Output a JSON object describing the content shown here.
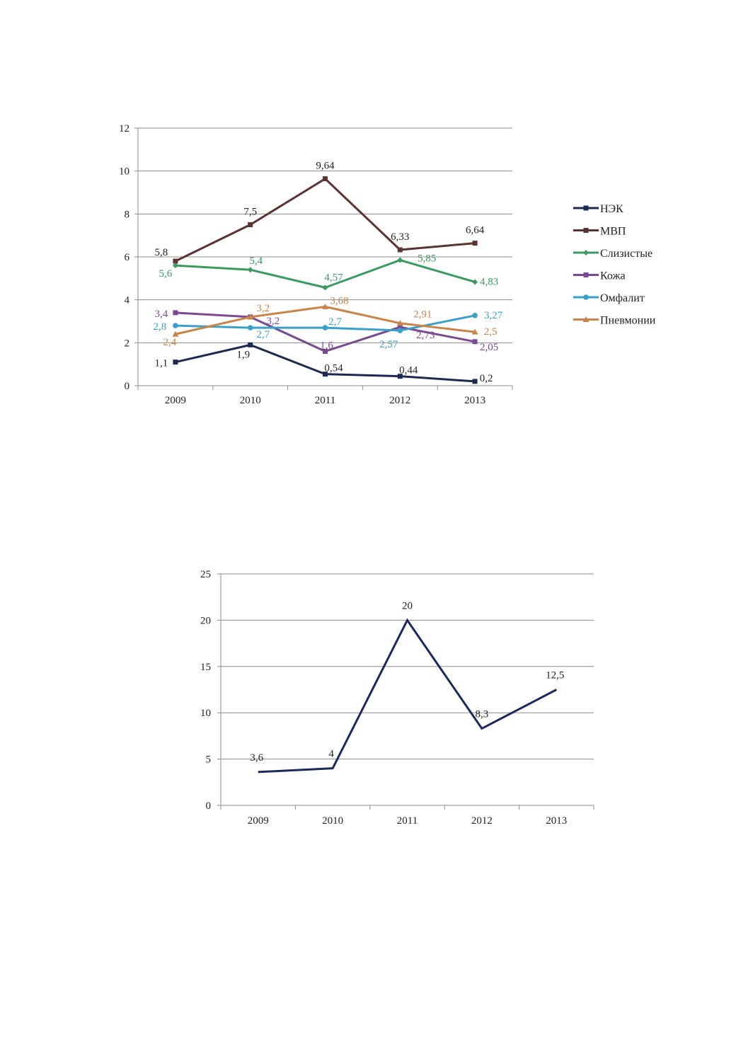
{
  "chart_data": [
    {
      "type": "line",
      "categories": [
        "2009",
        "2010",
        "2011",
        "2012",
        "2013"
      ],
      "ylim": [
        0,
        12
      ],
      "yticks": [
        "0",
        "2",
        "4",
        "6",
        "8",
        "10",
        "12"
      ],
      "grid": true,
      "legend_position": "right",
      "series": [
        {
          "name": "НЭК",
          "color": "#1b2a4e",
          "marker": "square",
          "values": [
            1.1,
            1.9,
            0.54,
            0.44,
            0.2
          ],
          "labels": [
            "1,1",
            "1,9",
            "0,54",
            "0,44",
            "0,2"
          ]
        },
        {
          "name": "МВП",
          "color": "#5a3432",
          "marker": "square",
          "values": [
            5.8,
            7.5,
            9.64,
            6.33,
            6.64
          ],
          "labels": [
            "5,8",
            "7,5",
            "9,64",
            "6,33",
            "6,64"
          ]
        },
        {
          "name": "Слизистые",
          "color": "#3a9a5f",
          "marker": "diamond",
          "values": [
            5.6,
            5.4,
            4.57,
            5.85,
            4.83
          ],
          "labels": [
            "5,6",
            "5,4",
            "4,57",
            "5,85",
            "4,83"
          ]
        },
        {
          "name": "Кожа",
          "color": "#7a4a90",
          "marker": "square",
          "values": [
            3.4,
            3.2,
            1.6,
            2.73,
            2.05
          ],
          "labels": [
            "3,4",
            "3,2",
            "1,6",
            "2,73",
            "2,05"
          ]
        },
        {
          "name": "Омфалит",
          "color": "#3aa0c8",
          "marker": "circle",
          "values": [
            2.8,
            2.7,
            2.7,
            2.57,
            3.27
          ],
          "labels": [
            "2,8",
            "2,7",
            "2,7",
            "2,57",
            "3,27"
          ]
        },
        {
          "name": "Пневмонии",
          "color": "#c8844a",
          "marker": "triangle",
          "values": [
            2.4,
            3.2,
            3.68,
            2.91,
            2.5
          ],
          "labels": [
            "2,4",
            "3,2",
            "3,68",
            "2,91",
            "2,5"
          ]
        }
      ]
    },
    {
      "type": "line",
      "categories": [
        "2009",
        "2010",
        "2011",
        "2012",
        "2013"
      ],
      "ylim": [
        0,
        25
      ],
      "yticks": [
        "0",
        "5",
        "10",
        "15",
        "20",
        "25"
      ],
      "grid": true,
      "series": [
        {
          "color": "#1b2a5c",
          "values": [
            3.6,
            4,
            20,
            8.3,
            12.5
          ],
          "labels": [
            "3,6",
            "4",
            "20",
            "8,3",
            "12,5"
          ]
        }
      ]
    }
  ]
}
